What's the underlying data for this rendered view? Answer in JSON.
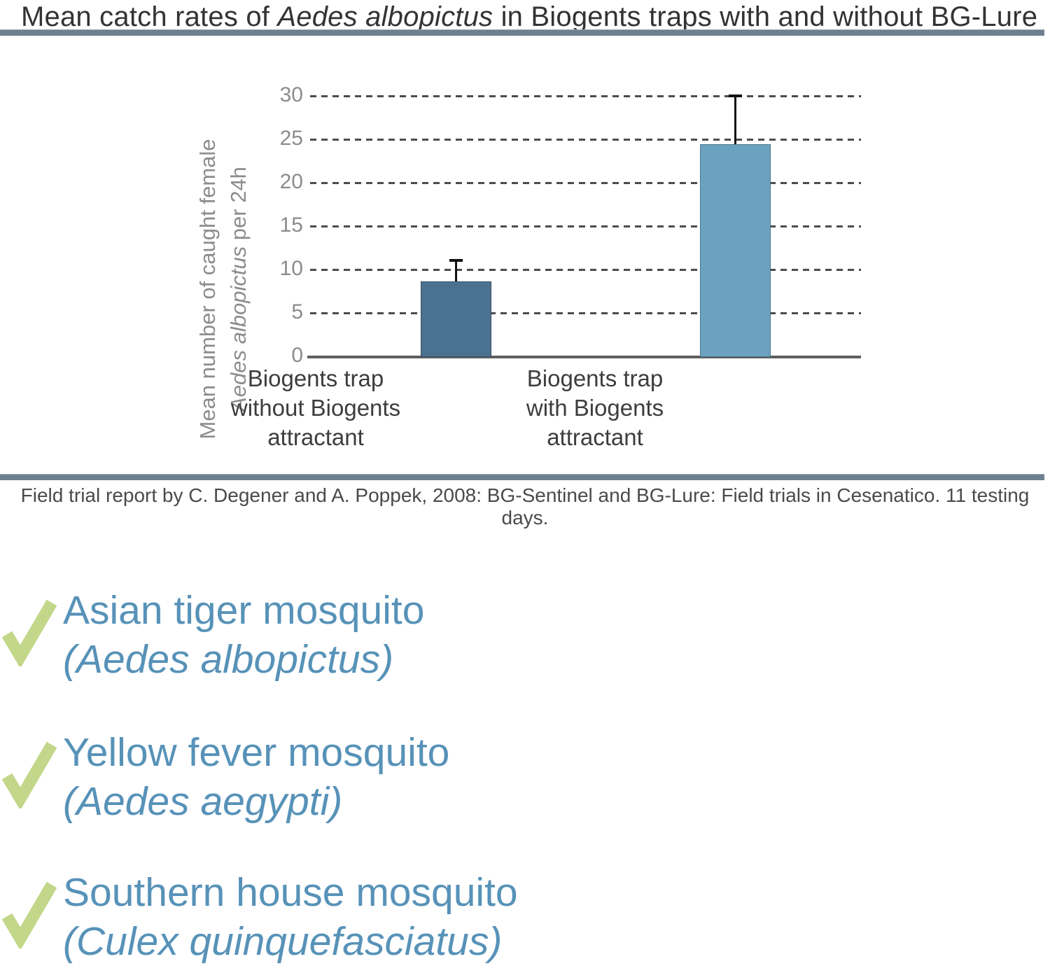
{
  "title": {
    "prefix": "Mean catch rates of ",
    "species": "Aedes albopictus",
    "suffix": " in Biogents traps with and without BG-Lure"
  },
  "caption": "Field trial report by C. Degener and A. Poppek, 2008: BG-Sentinel and BG-Lure: Field trials in Cesenatico. 11 testing days.",
  "chart_data": {
    "type": "bar",
    "title": "Mean catch rates of Aedes albopictus in Biogents traps with and without BG-Lure",
    "ylabel": {
      "line1": "Mean number of caught female",
      "line2_italic": "Aedes albopictus",
      "line2_rest": " per 24h"
    },
    "xlabel": "",
    "categories": [
      "Biogents trap without Biogents attractant",
      "Biogents trap with Biogents attractant"
    ],
    "categories_lines": [
      [
        "Biogents trap",
        "without Biogents",
        "attractant"
      ],
      [
        "Biogents trap",
        "with Biogents",
        "attractant"
      ]
    ],
    "values": [
      8.7,
      24.5
    ],
    "error_upper": [
      11.2,
      30.2
    ],
    "yticks": [
      0,
      5,
      10,
      15,
      20,
      25,
      30
    ],
    "ylim": [
      0,
      30
    ],
    "grid": "horizontal-dashed",
    "legend_position": "none",
    "bar_colors": [
      "#4a7190",
      "#6ba2bf"
    ]
  },
  "checklist": [
    {
      "common_name": "Asian tiger mosquito",
      "latin_name": "(Aedes albopictus)"
    },
    {
      "common_name": "Yellow fever mosquito",
      "latin_name": "(Aedes aegypti)"
    },
    {
      "common_name": "Southern house mosquito",
      "latin_name": "(Culex quinquefasciatus)"
    }
  ],
  "colors": {
    "accent_text_blue": "#5792b8",
    "check_green": "#c3d78a",
    "bar_without_lure": "#4a7190",
    "bar_with_lure": "#6ba2bf",
    "separator": "#6e8090",
    "title_text": "#333333",
    "axis_text": "#8c8c8c",
    "gridline": "#4c4c4c"
  }
}
